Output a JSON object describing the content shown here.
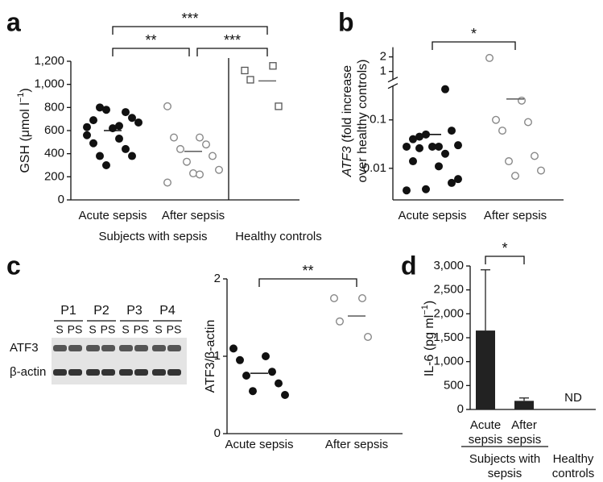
{
  "blot": {
    "lanes": [
      "P1",
      "P2",
      "P3",
      "P4"
    ],
    "sublanes": [
      "S",
      "PS"
    ],
    "rows": [
      "ATF3",
      "β-actin"
    ]
  },
  "chart_data": [
    {
      "panel": "a",
      "type": "dotplot",
      "ylabel_lines": [
        [
          {
            "text": "GSH (μmol l"
          },
          {
            "text": "−1",
            "sup": true
          },
          {
            "text": ")"
          }
        ]
      ],
      "categories": [
        "Acute sepsis",
        "After sepsis",
        null
      ],
      "groups": [
        {
          "label": "Subjects with sepsis",
          "span": [
            0,
            1
          ]
        },
        {
          "label": "Healthy controls",
          "span": [
            2,
            2
          ]
        }
      ],
      "points": [
        [
          630,
          640,
          690,
          760,
          800,
          710,
          780,
          670,
          620,
          560,
          530,
          490,
          440,
          380,
          380,
          300
        ],
        [
          810,
          540,
          540,
          480,
          440,
          380,
          330,
          260,
          230,
          150,
          220
        ],
        [
          1120,
          1160,
          1040,
          810
        ]
      ],
      "markers": [
        "filled circle",
        "open circle",
        "open square"
      ],
      "means": [
        600,
        420,
        1030
      ],
      "ylim": [
        0,
        1200
      ],
      "yticks": [
        0,
        200,
        400,
        600,
        800,
        {
          "value": 1000,
          "label": "1,000"
        },
        {
          "value": 1200,
          "label": "1,200"
        }
      ],
      "divider_before": 2,
      "significance": [
        {
          "from": 0,
          "to": 2,
          "label": "***"
        },
        {
          "from": 0,
          "to": 1,
          "label": "**"
        },
        {
          "from": 1,
          "to": 2,
          "label": "***"
        }
      ]
    },
    {
      "panel": "b",
      "type": "dotplot",
      "ylabel_lines": [
        [
          {
            "text": "ATF3",
            "italic": true
          },
          {
            "text": " (fold increase"
          }
        ],
        [
          {
            "text": "over healthy controls)"
          }
        ]
      ],
      "categories": [
        "Acute sepsis",
        "After sepsis"
      ],
      "points": [
        [
          0.0035,
          0.011,
          0.014,
          0.02,
          0.045,
          0.06,
          0.05,
          0.03,
          0.028,
          0.028,
          0.028,
          0.04,
          0.43,
          0.026,
          0.005,
          0.0037,
          0.006
        ],
        [
          1.9,
          0.25,
          0.1,
          0.09,
          0.06,
          0.018,
          0.014,
          0.009,
          0.007
        ]
      ],
      "markers": [
        "filled circle",
        "open circle"
      ],
      "means": [
        0.05,
        0.27
      ],
      "log_scale": true,
      "axis_break": true,
      "ylim": [
        0.0025,
        3
      ],
      "yticks": [
        0.01,
        0.1,
        1,
        2
      ],
      "significance": [
        {
          "from": 0,
          "to": 1,
          "label": "*"
        }
      ]
    },
    {
      "panel": "c",
      "type": "dotplot",
      "ylabel_lines": [
        [
          {
            "text": "ATF3/β-actin"
          }
        ]
      ],
      "categories": [
        "Acute sepsis",
        "After sepsis"
      ],
      "points": [
        [
          1.1,
          1.0,
          0.95,
          0.8,
          0.75,
          0.65,
          0.55,
          0.5
        ],
        [
          1.75,
          1.75,
          1.45,
          1.25
        ]
      ],
      "markers": [
        "filled circle",
        "open circle"
      ],
      "means": [
        0.78,
        1.52
      ],
      "ylim": [
        0,
        2
      ],
      "yticks": [
        0,
        1,
        2
      ],
      "significance": [
        {
          "from": 0,
          "to": 1,
          "label": "**"
        }
      ]
    },
    {
      "panel": "d",
      "type": "bar",
      "ylabel_lines": [
        [
          {
            "text": "IL-6 (pg ml"
          },
          {
            "text": "−1",
            "sup": true
          },
          {
            "text": ")"
          }
        ]
      ],
      "categories": [
        [
          "Acute",
          "sepsis"
        ],
        [
          "After",
          "sepsis"
        ],
        null
      ],
      "groups": [
        {
          "label": [
            "Subjects with",
            "sepsis"
          ],
          "span": [
            0,
            1
          ]
        },
        {
          "label": [
            "Healthy",
            "controls"
          ],
          "span": [
            2,
            2
          ]
        }
      ],
      "group_rule": true,
      "values": [
        1650,
        180,
        null
      ],
      "errors": [
        1270,
        60,
        null
      ],
      "color": "#222222",
      "annotations": [
        {
          "category": 2,
          "text": "ND"
        }
      ],
      "ylim": [
        0,
        3000
      ],
      "yticks": [
        0,
        500,
        {
          "value": 1000,
          "label": "1,000"
        },
        {
          "value": 1500,
          "label": "1,500"
        },
        {
          "value": 2000,
          "label": "2,000"
        },
        {
          "value": 2500,
          "label": "2,500"
        },
        {
          "value": 3000,
          "label": "3,000"
        }
      ],
      "significance": [
        {
          "from": 0,
          "to": 1,
          "label": "*"
        }
      ]
    }
  ]
}
